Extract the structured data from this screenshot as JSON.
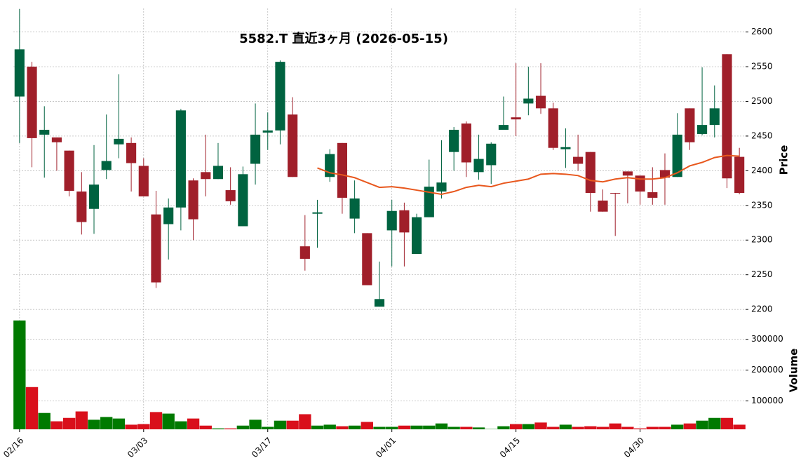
{
  "chart_data": [
    {
      "type": "candlestick",
      "title": "5582.T  直近3ヶ月  (2026-05-15)",
      "ylabel": "Price",
      "categories": [
        "02/16",
        null,
        null,
        null,
        null,
        null,
        null,
        null,
        null,
        null,
        "03/03",
        null,
        null,
        null,
        null,
        null,
        null,
        null,
        null,
        null,
        "03/17",
        null,
        null,
        null,
        null,
        null,
        null,
        null,
        null,
        null,
        "04/01",
        null,
        null,
        null,
        null,
        null,
        null,
        null,
        null,
        null,
        "04/15",
        null,
        null,
        null,
        null,
        null,
        null,
        null,
        null,
        null,
        "04/30",
        null,
        null,
        null,
        null,
        null,
        null,
        null,
        null
      ],
      "open": [
        2507,
        2550,
        2452,
        2448,
        2429,
        2370,
        2345,
        2401,
        2438,
        2440,
        2407,
        2337,
        2323,
        2347,
        2386,
        2398,
        2388,
        2372,
        2320,
        2410,
        2455,
        2458,
        2481,
        2291,
        2338,
        2391,
        2440,
        2331,
        2310,
        2204,
        2314,
        2343,
        2280,
        2333,
        2370,
        2427,
        2468,
        2398,
        2408,
        2459,
        2477,
        2497,
        2508,
        2490,
        2431,
        2420,
        2427,
        2357,
        2368,
        2399,
        2393,
        2369,
        2401,
        2391,
        2490,
        2453,
        2466,
        2568,
        2420
      ],
      "high": [
        2633,
        2557,
        2493,
        2448,
        2429,
        2398,
        2437,
        2481,
        2539,
        2448,
        2418,
        2371,
        2360,
        2489,
        2389,
        2452,
        2440,
        2405,
        2406,
        2497,
        2484,
        2559,
        2506,
        2336,
        2358,
        2431,
        2440,
        2386,
        2310,
        2269,
        2358,
        2354,
        2338,
        2416,
        2444,
        2463,
        2471,
        2452,
        2441,
        2507,
        2555,
        2550,
        2555,
        2498,
        2461,
        2452,
        2427,
        2373,
        2368,
        2399,
        2393,
        2405,
        2425,
        2483,
        2490,
        2549,
        2523,
        2568,
        2433
      ],
      "low": [
        2440,
        2405,
        2390,
        2400,
        2363,
        2308,
        2309,
        2388,
        2418,
        2370,
        2363,
        2231,
        2272,
        2314,
        2300,
        2363,
        2388,
        2351,
        2320,
        2380,
        2430,
        2438,
        2391,
        2256,
        2289,
        2384,
        2338,
        2310,
        2235,
        2204,
        2262,
        2262,
        2280,
        2333,
        2360,
        2400,
        2391,
        2387,
        2381,
        2459,
        2450,
        2480,
        2482,
        2430,
        2404,
        2400,
        2341,
        2341,
        2306,
        2353,
        2351,
        2351,
        2351,
        2391,
        2430,
        2451,
        2448,
        2375,
        2366
      ],
      "close": [
        2575,
        2447,
        2459,
        2441,
        2371,
        2326,
        2380,
        2414,
        2446,
        2411,
        2363,
        2239,
        2347,
        2487,
        2330,
        2388,
        2407,
        2356,
        2395,
        2452,
        2458,
        2557,
        2391,
        2273,
        2340,
        2424,
        2361,
        2360,
        2235,
        2215,
        2342,
        2311,
        2333,
        2377,
        2383,
        2459,
        2412,
        2417,
        2439,
        2466,
        2474,
        2504,
        2490,
        2433,
        2434,
        2410,
        2368,
        2341,
        2367,
        2393,
        2370,
        2361,
        2390,
        2452,
        2441,
        2466,
        2490,
        2389,
        2368
      ],
      "up_color": "#006340",
      "down_color": "#a01f2a",
      "overlay": {
        "type": "line",
        "color": "#e8571d",
        "values": [
          null,
          null,
          null,
          null,
          null,
          null,
          null,
          null,
          null,
          null,
          null,
          null,
          null,
          null,
          null,
          null,
          null,
          null,
          null,
          null,
          null,
          null,
          null,
          null,
          2404,
          2397,
          2394,
          2390,
          2383,
          2376,
          2377,
          2375,
          2372,
          2369,
          2366,
          2370,
          2376,
          2379,
          2377,
          2382,
          2385,
          2388,
          2395,
          2396,
          2395,
          2393,
          2386,
          2384,
          2388,
          2390,
          2388,
          2388,
          2390,
          2397,
          2407,
          2412,
          2419,
          2422,
          2421
        ]
      },
      "ylim": [
        2189,
        2634
      ],
      "yticks": [
        2200,
        2250,
        2300,
        2350,
        2400,
        2450,
        2500,
        2550,
        2600
      ],
      "grid": true
    },
    {
      "type": "bar",
      "ylabel": "Volume",
      "values": [
        361000,
        145000,
        61000,
        34000,
        45000,
        66000,
        39000,
        48000,
        43000,
        23000,
        25000,
        64000,
        59000,
        34000,
        43000,
        20000,
        11000,
        11000,
        20000,
        39000,
        16000,
        36000,
        36000,
        57000,
        20000,
        23000,
        18000,
        20000,
        32000,
        16000,
        16000,
        20000,
        20000,
        20000,
        27000,
        16000,
        16000,
        14000,
        9000,
        18000,
        25000,
        25000,
        30000,
        16000,
        23000,
        16000,
        18000,
        16000,
        27000,
        16000,
        11000,
        16000,
        16000,
        23000,
        27000,
        36000,
        45000,
        45000,
        23000
      ],
      "up_color": "#007a00",
      "down_color": "#d90f1b",
      "ylim": [
        8000,
        372000
      ],
      "yticks": [
        100000,
        200000,
        300000
      ],
      "grid": true
    }
  ]
}
